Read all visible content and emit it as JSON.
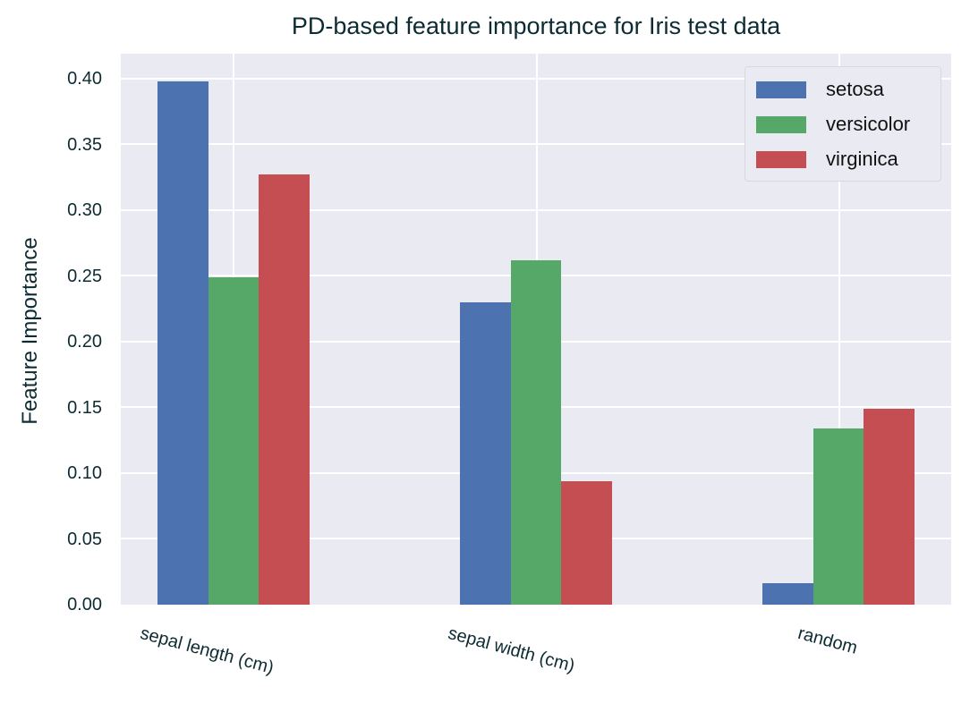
{
  "chart_data": {
    "type": "bar",
    "title": "PD-based feature importance for Iris test data",
    "xlabel": "",
    "ylabel": "Feature Importance",
    "ylim": [
      0,
      0.419
    ],
    "yticks": [
      "0.00",
      "0.05",
      "0.10",
      "0.15",
      "0.20",
      "0.25",
      "0.30",
      "0.35",
      "0.40"
    ],
    "categories": [
      "sepal length (cm)",
      "sepal width (cm)",
      "random"
    ],
    "series": [
      {
        "name": "setosa",
        "color": "#4c72b0",
        "values": [
          0.398,
          0.23,
          0.016
        ]
      },
      {
        "name": "versicolor",
        "color": "#55a868",
        "values": [
          0.249,
          0.262,
          0.134
        ]
      },
      {
        "name": "virginica",
        "color": "#c44e52",
        "values": [
          0.327,
          0.094,
          0.149
        ]
      }
    ],
    "grid": true,
    "legend_position": "upper right"
  }
}
